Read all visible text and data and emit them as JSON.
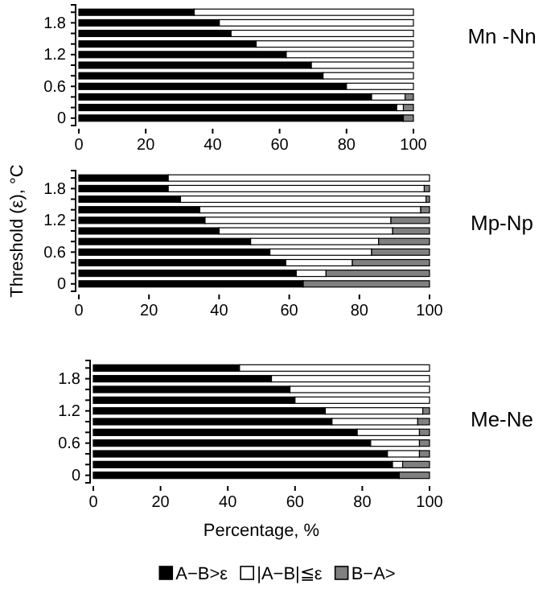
{
  "chart_data": [
    {
      "type": "bar",
      "orientation": "horizontal",
      "stacked": true,
      "annotations": [
        "Mn -Nn"
      ],
      "categories": [
        null,
        "1.8",
        null,
        null,
        "1.2",
        null,
        null,
        "0.6",
        null,
        null,
        "0"
      ],
      "xlim": [
        0,
        100
      ],
      "xticks": [
        0,
        20,
        40,
        60,
        80,
        100
      ],
      "legend": false,
      "series": [
        {
          "color": "#000000",
          "values": [
            34.5,
            42,
            45.5,
            53,
            62,
            69.5,
            73,
            80,
            87.5,
            95,
            97
          ]
        },
        {
          "color": "#ffffff",
          "values": [
            65.5,
            58,
            54.5,
            47,
            38,
            30.5,
            27,
            20,
            10,
            2,
            0
          ]
        },
        {
          "color": "#808080",
          "values": [
            0,
            0,
            0,
            0,
            0,
            0,
            0,
            0,
            2.5,
            3,
            3
          ]
        }
      ]
    },
    {
      "type": "bar",
      "orientation": "horizontal",
      "stacked": true,
      "annotations": [
        "Mp-Np"
      ],
      "ylabel": "Threshold (ε), °C",
      "categories": [
        null,
        "1.8",
        null,
        null,
        "1.2",
        null,
        null,
        "0.6",
        null,
        null,
        "0"
      ],
      "xlim": [
        0,
        100
      ],
      "xticks": [
        0,
        20,
        40,
        60,
        80,
        100
      ],
      "legend": false,
      "series": [
        {
          "color": "#000000",
          "values": [
            25.5,
            25.5,
            29,
            34.5,
            36,
            40,
            49,
            54.5,
            59,
            62,
            64
          ]
        },
        {
          "color": "#ffffff",
          "values": [
            74.5,
            73,
            70,
            63,
            53,
            49.5,
            36.5,
            29,
            19,
            8.5,
            0
          ]
        },
        {
          "color": "#808080",
          "values": [
            0,
            1.5,
            1,
            2.5,
            11,
            10.5,
            14.5,
            16.5,
            22,
            29.5,
            36
          ]
        }
      ]
    },
    {
      "type": "bar",
      "orientation": "horizontal",
      "stacked": true,
      "annotations": [
        "Me-Ne"
      ],
      "xlabel": "Percentage, %",
      "categories": [
        null,
        "1.8",
        null,
        null,
        "1.2",
        null,
        null,
        "0.6",
        null,
        null,
        "0"
      ],
      "xlim": [
        0,
        100
      ],
      "xticks": [
        0,
        20,
        40,
        60,
        80,
        100
      ],
      "legend": "bottom",
      "series": [
        {
          "name": "A−B>ε",
          "color": "#000000",
          "values": [
            43.5,
            53,
            58.5,
            60,
            69,
            71,
            78.5,
            82.5,
            87.5,
            89,
            91
          ]
        },
        {
          "name": "|A−B|≦ε",
          "color": "#ffffff",
          "values": [
            56.5,
            47,
            41.5,
            40,
            29,
            25.5,
            18.5,
            14.5,
            9.5,
            3,
            0
          ]
        },
        {
          "name": "B−A>",
          "color": "#808080",
          "values": [
            0,
            0,
            0,
            0,
            2,
            3.5,
            3,
            3,
            3,
            8,
            9
          ]
        }
      ]
    }
  ]
}
